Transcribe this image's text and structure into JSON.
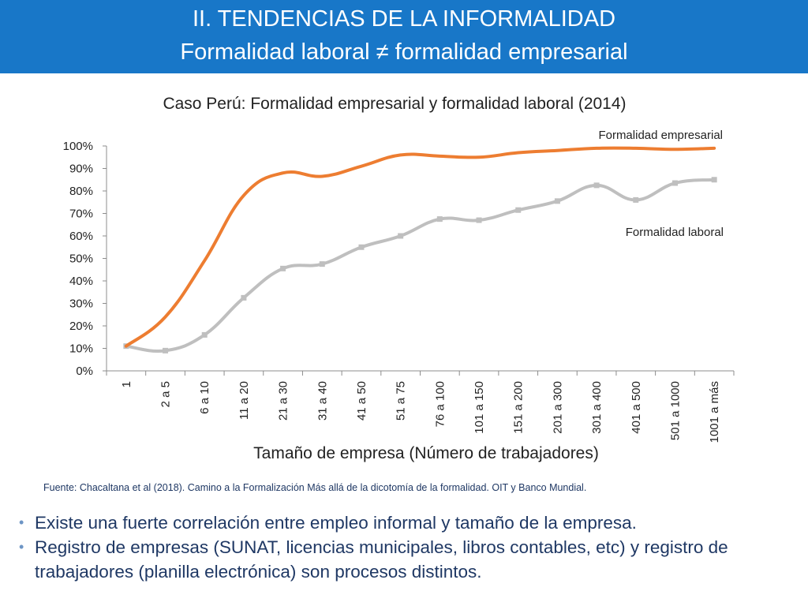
{
  "header": {
    "title": "II. TENDENCIAS DE LA INFORMALIDAD",
    "subtitle": "Formalidad laboral ≠ formalidad empresarial"
  },
  "chart_data": {
    "type": "line",
    "title": "Caso Perú: Formalidad empresarial y formalidad laboral (2014)",
    "xlabel": "Tamaño de empresa (Número de trabajadores)",
    "ylabel": "",
    "categories": [
      "1",
      "2 a 5",
      "6 a 10",
      "11 a 20",
      "21 a 30",
      "31 a 40",
      "41 a 50",
      "51 a 75",
      "76 a 100",
      "101 a 150",
      "151 a 200",
      "201 a 300",
      "301 a 400",
      "401 a 500",
      "501 a 1000",
      "1001 a más"
    ],
    "yticks": [
      "0%",
      "10%",
      "20%",
      "30%",
      "40%",
      "50%",
      "60%",
      "70%",
      "80%",
      "90%",
      "100%"
    ],
    "ylim": [
      0,
      100
    ],
    "grid": false,
    "series": [
      {
        "name": "Formalidad empresarial",
        "color": "#ed7d31",
        "values": [
          11,
          24,
          49,
          78,
          88,
          86.5,
          91,
          96,
          95.5,
          95,
          97,
          98,
          99,
          99,
          98.5,
          99
        ]
      },
      {
        "name": "Formalidad laboral",
        "color": "#bfbfbf",
        "values": [
          11,
          9,
          16,
          32.5,
          45.5,
          47.5,
          55,
          60,
          67.5,
          67,
          71.5,
          75.5,
          82.5,
          76,
          83.5,
          85
        ]
      }
    ]
  },
  "source": "Fuente: Chacaltana et al (2018). Camino a la  Formalización Más allá de la dicotomía de la formalidad. OIT y Banco Mundial.",
  "bullets": [
    "Existe una fuerte correlación entre empleo informal y tamaño de la empresa.",
    "Registro de empresas (SUNAT, licencias municipales, libros contables, etc) y registro de trabajadores (planilla electrónica) son procesos distintos."
  ]
}
